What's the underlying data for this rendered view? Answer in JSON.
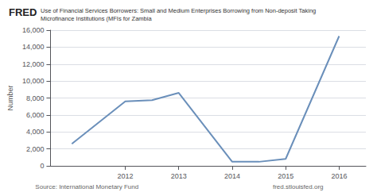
{
  "chart_data": {
    "type": "line",
    "title": "Use of Financial Services Borrowers: Small and Medium Enterprises Borrowing from Non-deposit Taking",
    "subtitle": "Microfinance Institutions (MFIs for Zambia",
    "annotations": [
      "FRED",
      "Source: International Monetary Fund",
      "fred.stlouisfed.org"
    ],
    "ylabel": "Number",
    "x": [
      2011.0,
      2012.0,
      2012.5,
      2013.0,
      2014.0,
      2014.5,
      2015.0,
      2016.0
    ],
    "values": [
      2600,
      7600,
      7750,
      8600,
      480,
      480,
      820,
      15300
    ],
    "color": "#6a8fba",
    "xlim": [
      2010.6,
      2016.5
    ],
    "xticks": [
      2012,
      2013,
      2014,
      2015,
      2016
    ],
    "ylim": [
      0,
      16000
    ],
    "yticks": [
      0,
      {
        "value": 2000,
        "label": "2,000"
      },
      {
        "value": 4000,
        "label": "4,000"
      },
      {
        "value": 6000,
        "label": "6,000"
      },
      {
        "value": 8000,
        "label": "8,000"
      },
      {
        "value": 10000,
        "label": "10,000"
      },
      {
        "value": 12000,
        "label": "12,000"
      },
      {
        "value": 14000,
        "label": "14,000"
      },
      {
        "value": 16000,
        "label": "16,000"
      }
    ],
    "grid": true
  }
}
